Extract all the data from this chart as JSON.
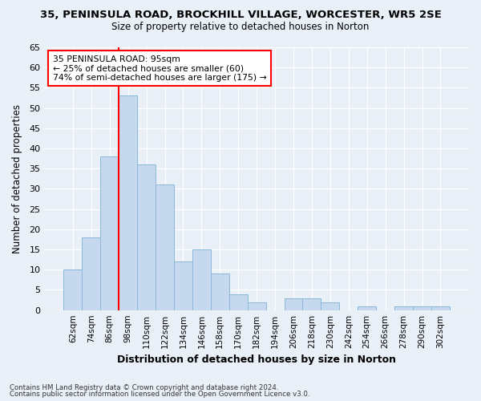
{
  "title1": "35, PENINSULA ROAD, BROCKHILL VILLAGE, WORCESTER, WR5 2SE",
  "title2": "Size of property relative to detached houses in Norton",
  "xlabel": "Distribution of detached houses by size in Norton",
  "ylabel": "Number of detached properties",
  "categories": [
    "62sqm",
    "74sqm",
    "86sqm",
    "98sqm",
    "110sqm",
    "122sqm",
    "134sqm",
    "146sqm",
    "158sqm",
    "170sqm",
    "182sqm",
    "194sqm",
    "206sqm",
    "218sqm",
    "230sqm",
    "242sqm",
    "254sqm",
    "266sqm",
    "278sqm",
    "290sqm",
    "302sqm"
  ],
  "values": [
    10,
    18,
    38,
    53,
    36,
    31,
    12,
    15,
    9,
    4,
    2,
    0,
    3,
    3,
    2,
    0,
    1,
    0,
    1,
    1,
    1
  ],
  "bar_color": "#c5d8ed",
  "bar_edge_color": "#8ab8d8",
  "ylim": [
    0,
    65
  ],
  "yticks": [
    0,
    5,
    10,
    15,
    20,
    25,
    30,
    35,
    40,
    45,
    50,
    55,
    60,
    65
  ],
  "red_line_bin_index": 3,
  "annotation_title": "35 PENINSULA ROAD: 95sqm",
  "annotation_line1": "← 25% of detached houses are smaller (60)",
  "annotation_line2": "74% of semi-detached houses are larger (175) →",
  "annotation_box_color": "white",
  "annotation_box_edge": "red",
  "red_line_color": "red",
  "footer1": "Contains HM Land Registry data © Crown copyright and database right 2024.",
  "footer2": "Contains public sector information licensed under the Open Government Licence v3.0.",
  "bg_color": "#eaf0f8",
  "grid_color": "white"
}
